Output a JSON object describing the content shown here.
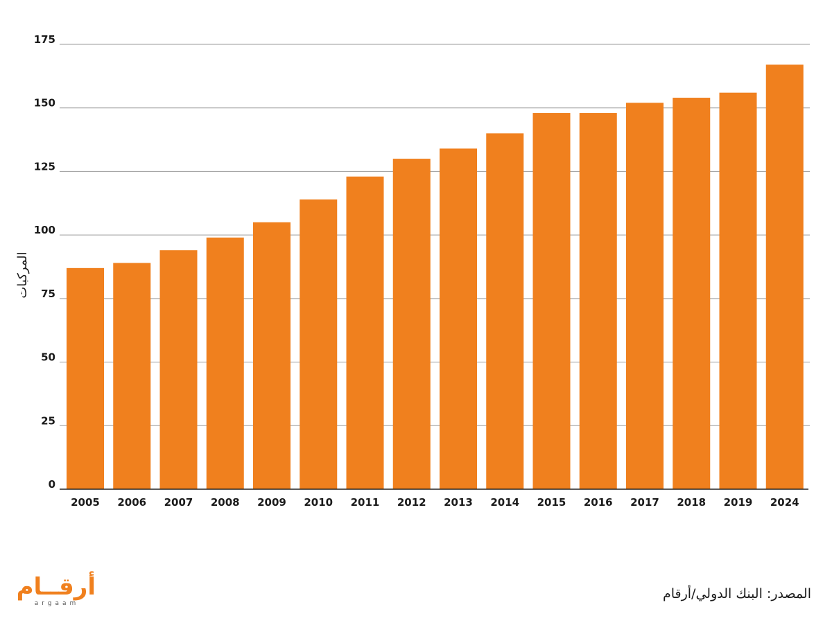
{
  "chart_data": {
    "type": "bar",
    "categories": [
      "2005",
      "2006",
      "2007",
      "2008",
      "2009",
      "2010",
      "2011",
      "2012",
      "2013",
      "2014",
      "2015",
      "2016",
      "2017",
      "2018",
      "2019",
      "2024"
    ],
    "values": [
      87,
      89,
      94,
      99,
      105,
      114,
      123,
      130,
      134,
      140,
      148,
      148,
      152,
      154,
      156,
      167
    ],
    "title": "",
    "xlabel": "",
    "ylabel": "المركبات",
    "ylim": [
      0,
      175
    ],
    "yticks": [
      0,
      25,
      50,
      75,
      100,
      125,
      150,
      175
    ],
    "grid": true,
    "bar_color": "#f0801e"
  },
  "source": "المصدر: البنك الدولي/أرقام",
  "logo": {
    "arabic": "أرقــام",
    "latin": "argaam"
  }
}
